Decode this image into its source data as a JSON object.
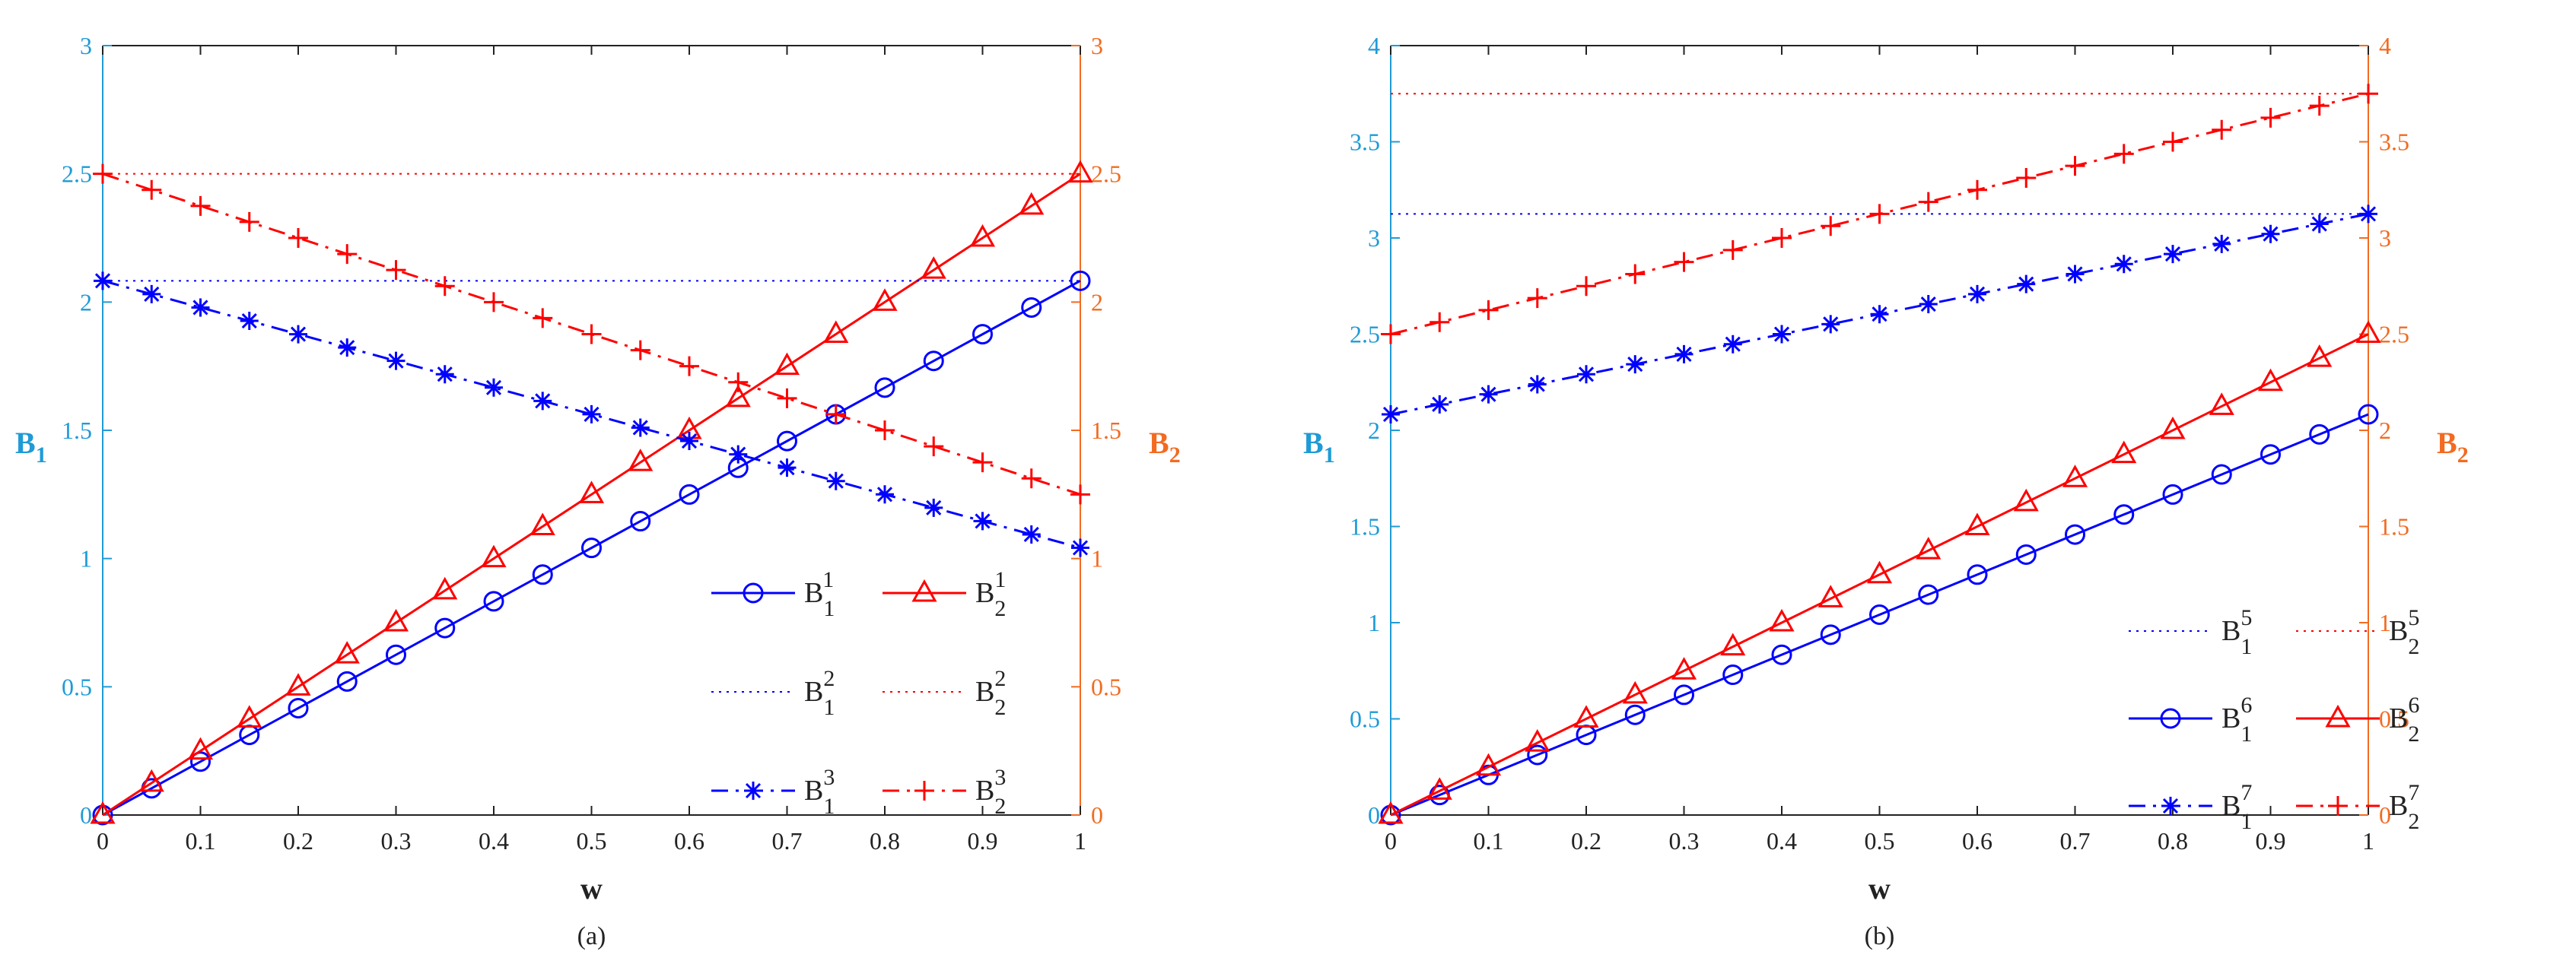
{
  "chart_data": [
    {
      "type": "line",
      "subplot_label": "(a)",
      "xlabel": "w",
      "ylabel_left": "B1",
      "ylabel_right": "B2",
      "xlim": [
        0,
        1
      ],
      "ylim_left": [
        0,
        3
      ],
      "ylim_right": [
        0,
        3
      ],
      "x_ticks": [
        "0",
        "0.1",
        "0.2",
        "0.3",
        "0.4",
        "0.5",
        "0.6",
        "0.7",
        "0.8",
        "0.9",
        "1"
      ],
      "y_ticks_left": [
        "0",
        "0.5",
        "1",
        "1.5",
        "2",
        "2.5",
        "3"
      ],
      "y_ticks_right": [
        "0",
        "0.5",
        "1",
        "1.5",
        "2",
        "2.5",
        "3"
      ],
      "left_axis_color": "#1f9bd6",
      "right_axis_color": "#f26b21",
      "legend_position": "bottom-right",
      "legend_columns": 2,
      "series": [
        {
          "name": "B",
          "sub": "1",
          "sup": "1",
          "color": "#0000ff",
          "style": "solid",
          "marker": "circle",
          "x0": 0,
          "x1": 1,
          "y0": 0,
          "y1": 2.083
        },
        {
          "name": "B",
          "sub": "2",
          "sup": "1",
          "color": "#ff0000",
          "style": "solid",
          "marker": "triangle",
          "x0": 0,
          "x1": 1,
          "y0": 0,
          "y1": 2.5
        },
        {
          "name": "B",
          "sub": "1",
          "sup": "2",
          "color": "#0000ff",
          "style": "dotted",
          "marker": "none",
          "x0": 0,
          "x1": 1,
          "y0": 2.083,
          "y1": 2.083
        },
        {
          "name": "B",
          "sub": "2",
          "sup": "2",
          "color": "#ff0000",
          "style": "dotted",
          "marker": "none",
          "x0": 0,
          "x1": 1,
          "y0": 2.5,
          "y1": 2.5
        },
        {
          "name": "B",
          "sub": "1",
          "sup": "3",
          "color": "#0000ff",
          "style": "dashdot",
          "marker": "star",
          "x0": 0,
          "x1": 1,
          "y0": 2.083,
          "y1": 1.042
        },
        {
          "name": "B",
          "sub": "2",
          "sup": "3",
          "color": "#ff0000",
          "style": "dashdot",
          "marker": "plus",
          "x0": 0,
          "x1": 1,
          "y0": 2.5,
          "y1": 1.25
        }
      ]
    },
    {
      "type": "line",
      "subplot_label": "(b)",
      "xlabel": "w",
      "ylabel_left": "B1",
      "ylabel_right": "B2",
      "xlim": [
        0,
        1
      ],
      "ylim_left": [
        0,
        4
      ],
      "ylim_right": [
        0,
        4
      ],
      "x_ticks": [
        "0",
        "0.1",
        "0.2",
        "0.3",
        "0.4",
        "0.5",
        "0.6",
        "0.7",
        "0.8",
        "0.9",
        "1"
      ],
      "y_ticks_left": [
        "0",
        "0.5",
        "1",
        "1.5",
        "2",
        "2.5",
        "3",
        "3.5",
        "4"
      ],
      "y_ticks_right": [
        "0",
        "0.5",
        "1",
        "1.5",
        "2",
        "2.5",
        "3",
        "3.5",
        "4"
      ],
      "left_axis_color": "#1f9bd6",
      "right_axis_color": "#f26b21",
      "legend_position": "bottom-right",
      "legend_columns": 2,
      "series": [
        {
          "name": "B",
          "sub": "1",
          "sup": "5",
          "color": "#0000ff",
          "style": "dotted",
          "marker": "none",
          "x0": 0,
          "x1": 1,
          "y0": 3.125,
          "y1": 3.125
        },
        {
          "name": "B",
          "sub": "2",
          "sup": "5",
          "color": "#ff0000",
          "style": "dotted",
          "marker": "none",
          "x0": 0,
          "x1": 1,
          "y0": 3.75,
          "y1": 3.75
        },
        {
          "name": "B",
          "sub": "1",
          "sup": "6",
          "color": "#0000ff",
          "style": "solid",
          "marker": "circle",
          "x0": 0,
          "x1": 1,
          "y0": 0,
          "y1": 2.083
        },
        {
          "name": "B",
          "sub": "2",
          "sup": "6",
          "color": "#ff0000",
          "style": "solid",
          "marker": "triangle",
          "x0": 0,
          "x1": 1,
          "y0": 0,
          "y1": 2.5
        },
        {
          "name": "B",
          "sub": "1",
          "sup": "7",
          "color": "#0000ff",
          "style": "dashdot",
          "marker": "star",
          "x0": 0,
          "x1": 1,
          "y0": 2.083,
          "y1": 3.125
        },
        {
          "name": "B",
          "sub": "2",
          "sup": "7",
          "color": "#ff0000",
          "style": "dashdot",
          "marker": "plus",
          "x0": 0,
          "x1": 1,
          "y0": 2.5,
          "y1": 3.75
        }
      ]
    }
  ]
}
